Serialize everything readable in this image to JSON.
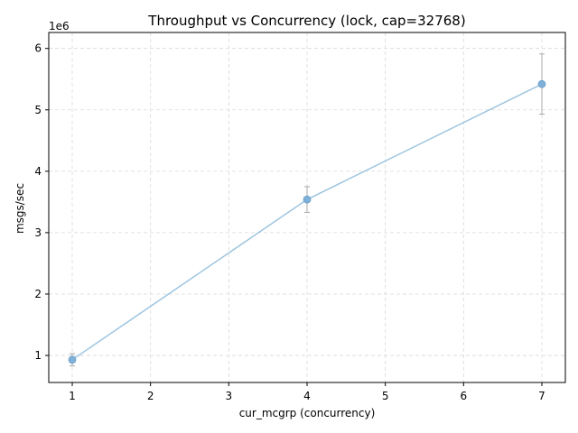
{
  "chart_data": {
    "type": "line",
    "title": "Throughput vs Concurrency (lock, cap=32768)",
    "xlabel": "cur_mcgrp (concurrency)",
    "ylabel": "msgs/sec",
    "y_offset_label": "1e6",
    "y_scale": 1000000,
    "xlim": [
      0.7,
      7.3
    ],
    "ylim": [
      560000,
      6260000
    ],
    "x_ticks": [
      1,
      2,
      3,
      4,
      5,
      6,
      7
    ],
    "y_ticks": [
      1000000,
      2000000,
      3000000,
      4000000,
      5000000,
      6000000
    ],
    "grid": true,
    "line_color": "#9ec5e0",
    "marker_color": "#7fb0d8",
    "errorbar_color": "#aaaaaa",
    "series": [
      {
        "x": [
          1,
          4,
          7
        ],
        "y": [
          930000,
          3540000,
          5420000
        ],
        "yerr": [
          100000,
          210000,
          490000
        ]
      }
    ]
  }
}
